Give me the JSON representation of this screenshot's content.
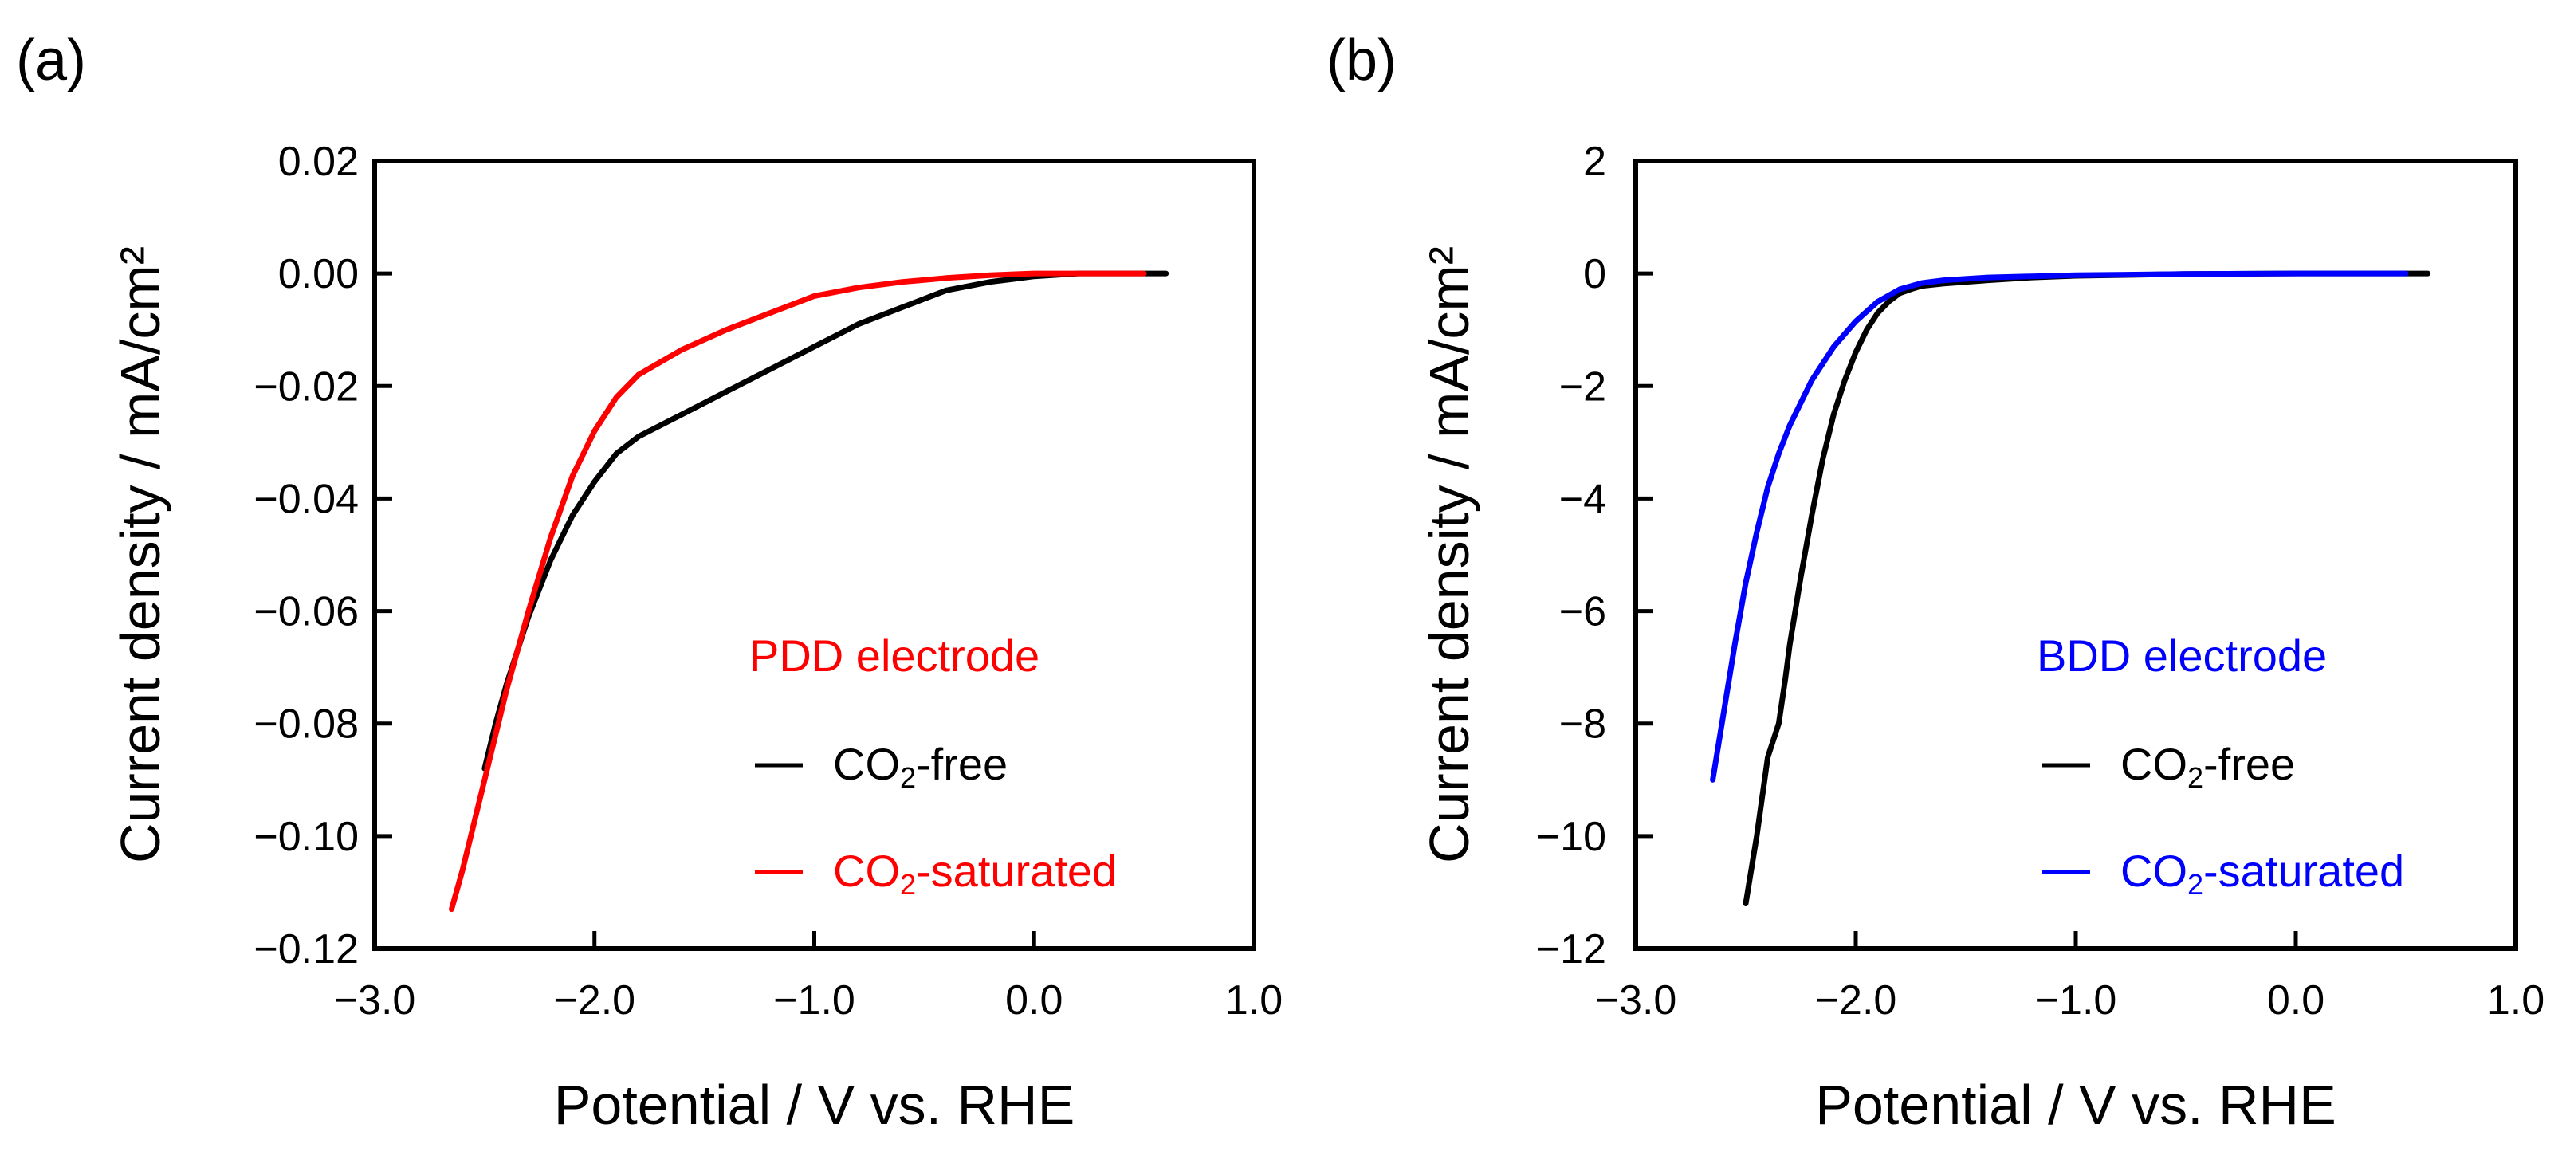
{
  "chart_data": [
    {
      "type": "line",
      "panel_label": "(a)",
      "xlabel": "Potential / V vs. RHE",
      "ylabel": "Current density / mA/cm²",
      "xlim": [
        -3.0,
        1.0
      ],
      "ylim": [
        -0.12,
        0.02
      ],
      "xticks": [
        -3.0,
        -2.0,
        -1.0,
        0.0,
        1.0
      ],
      "xtick_labels": [
        "−3.0",
        "−2.0",
        "−1.0",
        "0.0",
        "1.0"
      ],
      "yticks": [
        0.02,
        0.0,
        -0.02,
        -0.04,
        -0.06,
        -0.08,
        -0.1,
        -0.12
      ],
      "ytick_labels": [
        "0.02",
        "0.00",
        "−0.02",
        "−0.04",
        "−0.06",
        "−0.08",
        "−0.10",
        "−0.12"
      ],
      "electrode_label": "PDD electrode",
      "electrode_color": "#ff0000",
      "series": [
        {
          "name": "CO2-free",
          "name_main": "CO",
          "name_sub": "2",
          "name_rest": "-free",
          "color": "#000000",
          "x": [
            -2.5,
            -2.45,
            -2.4,
            -2.3,
            -2.2,
            -2.1,
            -2.0,
            -1.9,
            -1.8,
            -1.6,
            -1.4,
            -1.2,
            -1.0,
            -0.8,
            -0.6,
            -0.4,
            -0.2,
            0.0,
            0.2,
            0.4,
            0.6
          ],
          "y": [
            -0.088,
            -0.08,
            -0.073,
            -0.061,
            -0.051,
            -0.043,
            -0.037,
            -0.032,
            -0.029,
            -0.025,
            -0.021,
            -0.017,
            -0.013,
            -0.009,
            -0.006,
            -0.003,
            -0.0015,
            -0.0005,
            0.0,
            0.0,
            0.0
          ]
        },
        {
          "name": "CO2-saturated",
          "name_main": "CO",
          "name_sub": "2",
          "name_rest": "-saturated",
          "color": "#ff0000",
          "x": [
            -2.65,
            -2.6,
            -2.5,
            -2.4,
            -2.3,
            -2.2,
            -2.1,
            -2.0,
            -1.9,
            -1.8,
            -1.6,
            -1.4,
            -1.2,
            -1.0,
            -0.8,
            -0.6,
            -0.4,
            -0.2,
            0.0,
            0.2,
            0.5
          ],
          "y": [
            -0.113,
            -0.106,
            -0.09,
            -0.074,
            -0.06,
            -0.047,
            -0.036,
            -0.028,
            -0.022,
            -0.018,
            -0.0135,
            -0.01,
            -0.007,
            -0.004,
            -0.0025,
            -0.0015,
            -0.0008,
            -0.0003,
            0.0,
            0.0,
            0.0
          ]
        }
      ]
    },
    {
      "type": "line",
      "panel_label": "(b)",
      "xlabel": "Potential / V vs. RHE",
      "ylabel": "Current density / mA/cm²",
      "xlim": [
        -3.0,
        1.0
      ],
      "ylim": [
        -12,
        2
      ],
      "xticks": [
        -3.0,
        -2.0,
        -1.0,
        0.0,
        1.0
      ],
      "xtick_labels": [
        "−3.0",
        "−2.0",
        "−1.0",
        "0.0",
        "1.0"
      ],
      "yticks": [
        2,
        0,
        -2,
        -4,
        -6,
        -8,
        -10,
        -12
      ],
      "ytick_labels": [
        "2",
        "0",
        "−2",
        "−4",
        "−6",
        "−8",
        "−10",
        "−12"
      ],
      "electrode_label": "BDD electrode",
      "electrode_color": "#0000ff",
      "series": [
        {
          "name": "CO2-free",
          "name_main": "CO",
          "name_sub": "2",
          "name_rest": "-free",
          "color": "#000000",
          "x": [
            -2.5,
            -2.45,
            -2.4,
            -2.35,
            -2.32,
            -2.3,
            -2.25,
            -2.2,
            -2.15,
            -2.1,
            -2.05,
            -2.0,
            -1.95,
            -1.9,
            -1.85,
            -1.8,
            -1.75,
            -1.7,
            -1.6,
            -1.4,
            -1.2,
            -1.0,
            -0.5,
            0.0,
            0.6
          ],
          "y": [
            -11.2,
            -10.0,
            -8.6,
            -8.0,
            -7.2,
            -6.6,
            -5.4,
            -4.3,
            -3.3,
            -2.5,
            -1.9,
            -1.4,
            -1.0,
            -0.7,
            -0.5,
            -0.35,
            -0.28,
            -0.22,
            -0.18,
            -0.12,
            -0.07,
            -0.04,
            -0.01,
            0.0,
            0.0
          ]
        },
        {
          "name": "CO2-saturated",
          "name_main": "CO",
          "name_sub": "2",
          "name_rest": "-saturated",
          "color": "#0000ff",
          "x": [
            -2.65,
            -2.6,
            -2.55,
            -2.5,
            -2.45,
            -2.4,
            -2.35,
            -2.3,
            -2.2,
            -2.1,
            -2.0,
            -1.9,
            -1.8,
            -1.7,
            -1.6,
            -1.4,
            -1.2,
            -1.0,
            -0.5,
            0.0,
            0.5
          ],
          "y": [
            -9.0,
            -7.8,
            -6.6,
            -5.5,
            -4.6,
            -3.8,
            -3.2,
            -2.7,
            -1.9,
            -1.3,
            -0.85,
            -0.5,
            -0.28,
            -0.17,
            -0.12,
            -0.07,
            -0.05,
            -0.03,
            -0.01,
            0.0,
            0.0
          ]
        }
      ]
    }
  ]
}
